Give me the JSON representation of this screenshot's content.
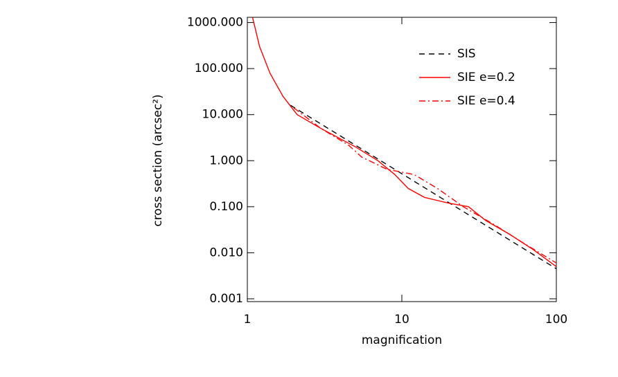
{
  "chart_data": {
    "type": "line",
    "xlabel": "magnification",
    "ylabel": "cross section (arcsec²)",
    "log_x": true,
    "log_y": true,
    "xlim": [
      1,
      100
    ],
    "xticks": [
      1,
      10,
      100
    ],
    "ylim": [
      0.00087,
      1300
    ],
    "yticks": [
      {
        "value": 0.001,
        "label": "0.001"
      },
      {
        "value": 0.01,
        "label": "0.010"
      },
      {
        "value": 0.1,
        "label": "0.100"
      },
      {
        "value": 1,
        "label": "1.000"
      },
      {
        "value": 10,
        "label": "10.000"
      },
      {
        "value": 100,
        "label": "100.000"
      },
      {
        "value": 1000,
        "label": "1000.000"
      }
    ],
    "legend": "upper right",
    "series": [
      {
        "name": "SIS",
        "color": "#000000",
        "dash": "dashed",
        "x": [
          1.9,
          100
        ],
        "values": [
          16,
          0.0045
        ]
      },
      {
        "name": "SIE e=0.2",
        "color": "#ff0000",
        "dash": "solid",
        "x": [
          1.08,
          1.2,
          1.4,
          1.7,
          2.1,
          3,
          5,
          7,
          9,
          11,
          14,
          20,
          27,
          35,
          50,
          70,
          100
        ],
        "values": [
          1300,
          300,
          80,
          25,
          10,
          5,
          2,
          1,
          0.5,
          0.25,
          0.16,
          0.12,
          0.1,
          0.05,
          0.025,
          0.012,
          0.005
        ]
      },
      {
        "name": "SIE e=0.4",
        "color": "#ff0000",
        "dash": "dashdot",
        "x": [
          2,
          3,
          4.5,
          5.5,
          8,
          12,
          17,
          25,
          40,
          60,
          100
        ],
        "values": [
          14,
          5,
          2.2,
          1.2,
          0.65,
          0.5,
          0.25,
          0.1,
          0.04,
          0.017,
          0.006
        ]
      }
    ]
  }
}
